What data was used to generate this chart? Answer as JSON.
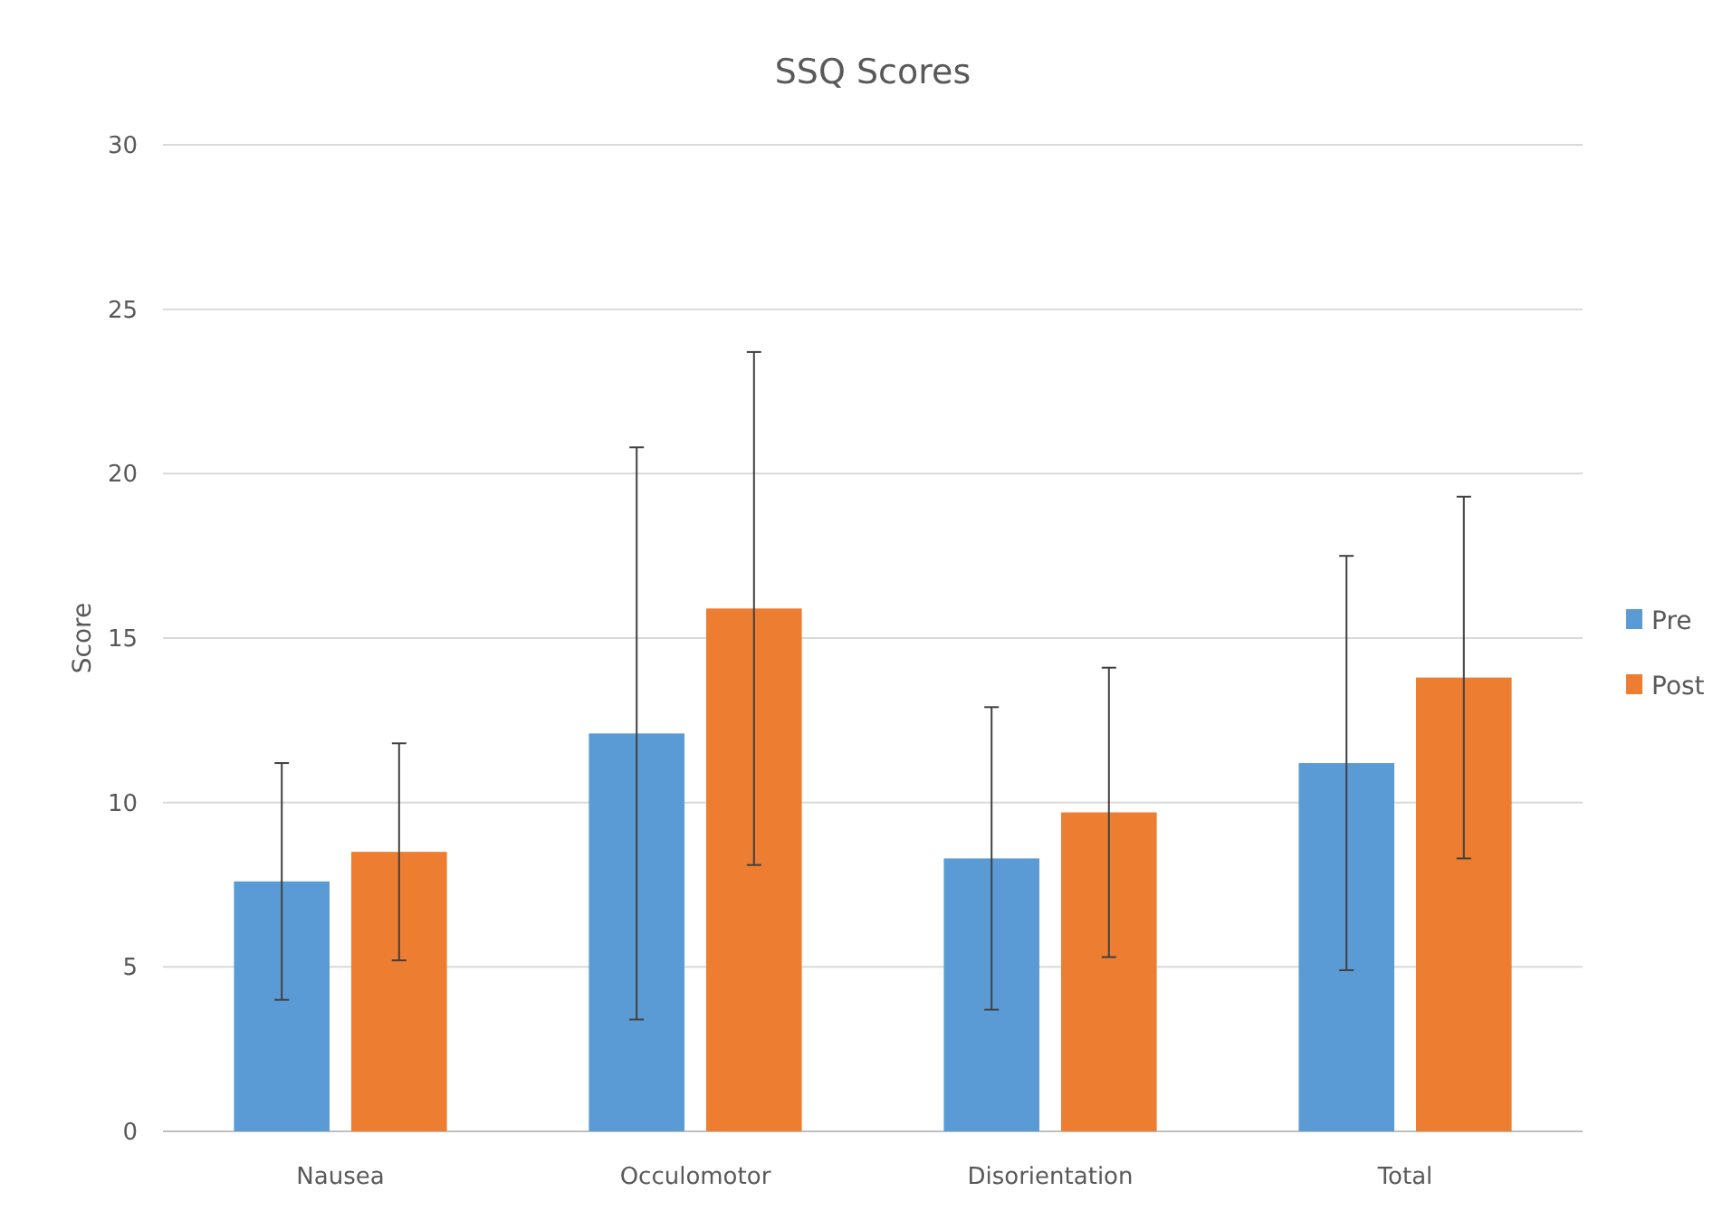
{
  "chart_data": {
    "type": "bar",
    "title": "SSQ Scores",
    "ylabel": "Score",
    "categories": [
      "Nausea",
      "Occulomotor",
      "Disorientation",
      "Total"
    ],
    "series": [
      {
        "name": "Pre",
        "color": "#5b9bd5",
        "values": [
          7.6,
          12.1,
          8.3,
          11.2
        ],
        "errors": [
          3.6,
          8.7,
          4.6,
          6.3
        ]
      },
      {
        "name": "Post",
        "color": "#ed7d31",
        "values": [
          8.5,
          15.9,
          9.7,
          13.8
        ],
        "errors": [
          3.3,
          7.8,
          4.4,
          5.5
        ]
      }
    ],
    "ylim": [
      0,
      30
    ],
    "yticks": [
      0,
      5,
      10,
      15,
      20,
      25,
      30
    ],
    "grid": "y",
    "legend": "right"
  }
}
